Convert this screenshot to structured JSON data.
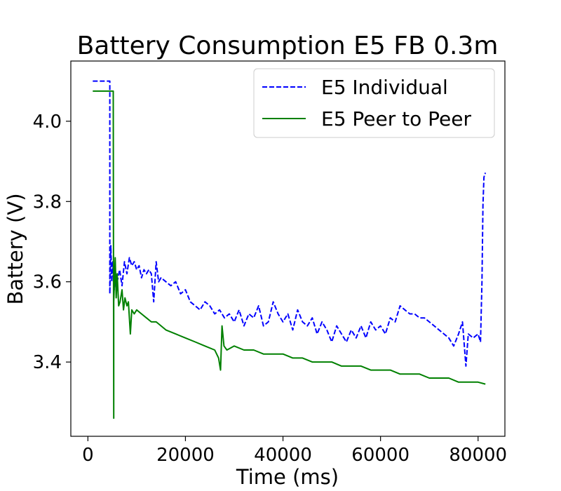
{
  "chart_data": {
    "type": "line",
    "title": "Battery Consumption E5 FB 0.3m",
    "xlabel": "Time (ms)",
    "ylabel": "Battery (V)",
    "xlim": [
      -3500,
      85500
    ],
    "ylim": [
      3.215,
      4.15
    ],
    "xticks": [
      0,
      20000,
      40000,
      60000,
      80000
    ],
    "xtick_labels": [
      "0",
      "20000",
      "40000",
      "60000",
      "80000"
    ],
    "yticks": [
      3.4,
      3.6,
      3.8,
      4.0
    ],
    "ytick_labels": [
      "3.4",
      "3.6",
      "3.8",
      "4.0"
    ],
    "grid": false,
    "legend_position": "top-right",
    "series": [
      {
        "name": "E5 Individual",
        "color": "#0000ff",
        "style": "dashed",
        "x": [
          1000,
          3000,
          4500,
          4500,
          4700,
          4900,
          5100,
          5400,
          5700,
          6000,
          6500,
          7000,
          7500,
          8000,
          8500,
          9000,
          9500,
          10000,
          10500,
          11000,
          11500,
          12000,
          12500,
          13000,
          13500,
          14000,
          14500,
          15000,
          16000,
          17000,
          18000,
          19000,
          20000,
          21000,
          22000,
          23000,
          24000,
          25000,
          26000,
          27000,
          28000,
          29000,
          30000,
          31000,
          32000,
          33000,
          34000,
          35000,
          36000,
          37000,
          38000,
          39000,
          40000,
          41000,
          42000,
          43000,
          44000,
          45000,
          46000,
          47000,
          48000,
          49000,
          50000,
          51000,
          52000,
          53000,
          54000,
          55000,
          56000,
          57000,
          58000,
          59000,
          60000,
          61000,
          62000,
          63000,
          64000,
          65000,
          66000,
          67000,
          68000,
          69000,
          70000,
          71000,
          72000,
          73000,
          74000,
          75000,
          76000,
          76800,
          77500,
          78000,
          79000,
          80000,
          80500,
          80800,
          81000,
          81200,
          81400,
          81600
        ],
        "y": [
          4.1,
          4.1,
          4.1,
          3.57,
          3.69,
          3.6,
          3.65,
          3.58,
          3.62,
          3.6,
          3.63,
          3.59,
          3.65,
          3.62,
          3.66,
          3.64,
          3.65,
          3.63,
          3.64,
          3.61,
          3.63,
          3.62,
          3.63,
          3.62,
          3.55,
          3.65,
          3.6,
          3.61,
          3.6,
          3.59,
          3.6,
          3.57,
          3.58,
          3.55,
          3.54,
          3.53,
          3.55,
          3.54,
          3.52,
          3.53,
          3.51,
          3.52,
          3.5,
          3.53,
          3.49,
          3.52,
          3.51,
          3.54,
          3.49,
          3.5,
          3.55,
          3.52,
          3.5,
          3.52,
          3.48,
          3.53,
          3.5,
          3.49,
          3.51,
          3.47,
          3.5,
          3.48,
          3.45,
          3.49,
          3.47,
          3.45,
          3.48,
          3.46,
          3.49,
          3.46,
          3.5,
          3.48,
          3.49,
          3.47,
          3.51,
          3.5,
          3.54,
          3.53,
          3.52,
          3.52,
          3.51,
          3.51,
          3.5,
          3.49,
          3.48,
          3.47,
          3.46,
          3.44,
          3.47,
          3.5,
          3.39,
          3.47,
          3.46,
          3.47,
          3.45,
          3.6,
          3.79,
          3.86,
          3.87,
          3.87
        ]
      },
      {
        "name": "E5 Peer to Peer",
        "color": "#008000",
        "style": "solid",
        "x": [
          1000,
          3000,
          4500,
          5200,
          5300,
          5300,
          5600,
          5800,
          6000,
          6300,
          6600,
          7000,
          7300,
          7600,
          8000,
          8300,
          8700,
          9000,
          9500,
          10000,
          11000,
          12000,
          13000,
          14000,
          15000,
          16000,
          18000,
          20000,
          22000,
          24000,
          26000,
          26800,
          27200,
          27500,
          27900,
          28500,
          30000,
          32000,
          34000,
          36000,
          38000,
          40000,
          42000,
          44000,
          46000,
          48000,
          50000,
          52000,
          54000,
          56000,
          58000,
          60000,
          62000,
          64000,
          66000,
          68000,
          70000,
          72000,
          74000,
          76000,
          78000,
          80000,
          81500
        ],
        "y": [
          4.075,
          4.075,
          4.075,
          4.075,
          3.26,
          3.55,
          3.66,
          3.56,
          3.62,
          3.54,
          3.55,
          3.58,
          3.53,
          3.56,
          3.54,
          3.55,
          3.47,
          3.53,
          3.52,
          3.53,
          3.52,
          3.51,
          3.5,
          3.5,
          3.49,
          3.48,
          3.47,
          3.46,
          3.45,
          3.44,
          3.43,
          3.41,
          3.38,
          3.49,
          3.44,
          3.43,
          3.44,
          3.43,
          3.43,
          3.42,
          3.42,
          3.42,
          3.41,
          3.41,
          3.4,
          3.4,
          3.4,
          3.39,
          3.39,
          3.39,
          3.38,
          3.38,
          3.38,
          3.37,
          3.37,
          3.37,
          3.36,
          3.36,
          3.36,
          3.35,
          3.35,
          3.35,
          3.345
        ]
      }
    ]
  }
}
